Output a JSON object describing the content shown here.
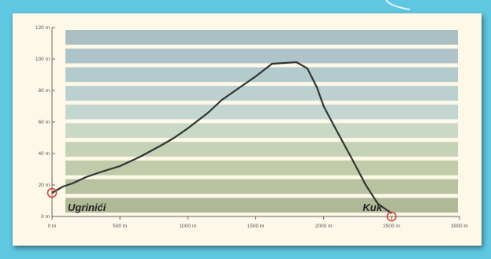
{
  "colors": {
    "background": "#5fc7e0",
    "panel": "#fdf8e8",
    "profile_line": "#333333",
    "marker": "#d9442f",
    "band_colors": [
      "#a9bfc4",
      "#aec4c8",
      "#b4cbcd",
      "#bcd1cf",
      "#c3d6d0",
      "#c9d9c6",
      "#c5d2b6",
      "#bfcba9",
      "#b8c2a1",
      "#b0b997"
    ]
  },
  "chart_data": {
    "type": "line",
    "title": "",
    "xlabel": "",
    "ylabel": "",
    "xlim": [
      0,
      3000
    ],
    "ylim": [
      0,
      120
    ],
    "grid": false,
    "x_ticks": [
      0,
      500,
      1000,
      1500,
      2000,
      2500,
      3000
    ],
    "x_tick_labels": [
      "0 m",
      "500 m",
      "1000 m",
      "1500 m",
      "2000 m",
      "2500 m",
      "3000 m"
    ],
    "y_ticks": [
      0,
      20,
      40,
      60,
      80,
      100,
      120
    ],
    "y_tick_labels": [
      "0 m",
      "20 m",
      "40 m",
      "60 m",
      "80 m",
      "100 m",
      "120 m"
    ],
    "series": [
      {
        "x": [
          0,
          80,
          150,
          250,
          350,
          500,
          650,
          800,
          900,
          1000,
          1150,
          1250,
          1350,
          1500,
          1620,
          1800,
          1880,
          1950,
          2000,
          2080,
          2200,
          2310,
          2400,
          2500
        ],
        "y": [
          15,
          19,
          21,
          25,
          28,
          32,
          38,
          45,
          50,
          56,
          66,
          74,
          80,
          89,
          97,
          98,
          94,
          82,
          70,
          57,
          38,
          20,
          8,
          2
        ]
      }
    ],
    "annotations": [
      {
        "text": "Ugrinići",
        "x": 0,
        "y": 15
      },
      {
        "text": "Kuk",
        "x": 2500,
        "y": 0
      }
    ]
  }
}
